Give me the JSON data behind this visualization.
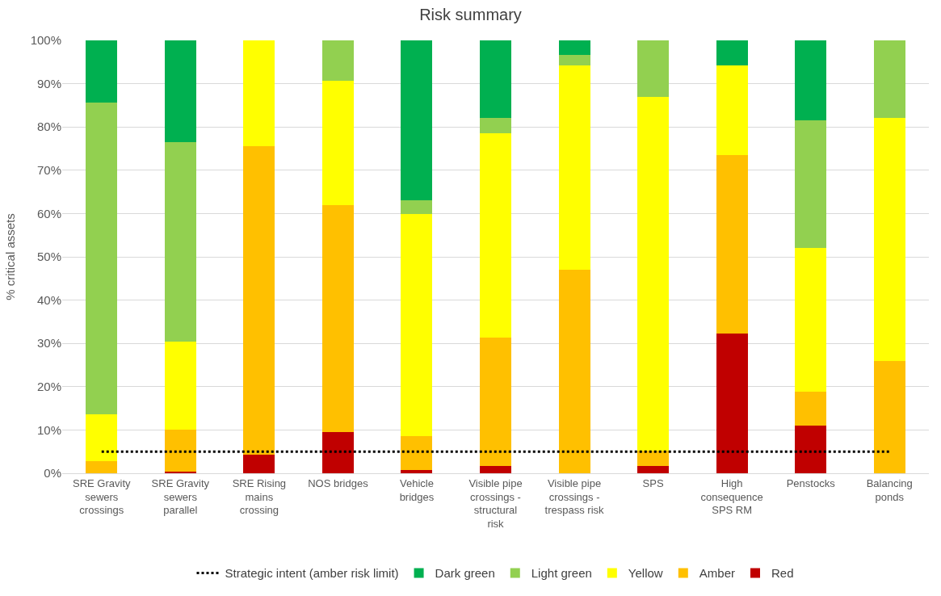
{
  "chart_data": {
    "type": "bar",
    "stacked": true,
    "title": "Risk summary",
    "ylabel": "% critical assets",
    "categories": [
      "SRE Gravity sewers crossings",
      "SRE Gravity sewers parallel",
      "SRE Rising mains crossing",
      "NOS bridges",
      "Vehicle bridges",
      "Visible pipe crossings - structural risk",
      "Visible pipe crossings - trespass risk",
      "SPS",
      "High consequence SPS RM",
      "Penstocks",
      "Balancing ponds"
    ],
    "series": [
      {
        "name": "Red",
        "color": "#c00000",
        "values": [
          0,
          0.3,
          4.3,
          9.6,
          0.7,
          1.6,
          0,
          1.6,
          32.3,
          11,
          0
        ]
      },
      {
        "name": "Amber",
        "color": "#ffc000",
        "values": [
          2.8,
          9.8,
          71.2,
          52.3,
          7.8,
          29.8,
          47.1,
          3.6,
          41.3,
          7.8,
          26
        ]
      },
      {
        "name": "Yellow",
        "color": "#ffff00",
        "values": [
          10.9,
          20.4,
          24.5,
          28.7,
          51.4,
          47.1,
          47.1,
          81.8,
          20.6,
          33.2,
          56
        ]
      },
      {
        "name": "Light green",
        "color": "#92d050",
        "values": [
          72,
          46,
          0,
          9.4,
          3.1,
          3.5,
          2.4,
          13,
          0,
          29.6,
          18
        ]
      },
      {
        "name": "Dark green",
        "color": "#00b050",
        "values": [
          14.3,
          23.5,
          0,
          0,
          37,
          18,
          3.4,
          0,
          5.8,
          18.4,
          0
        ]
      }
    ],
    "ref_lines": [
      {
        "axis": "y",
        "value": 5,
        "label": "Strategic intent (amber risk limit)",
        "color": "#000000",
        "line_style": "dotted"
      }
    ],
    "ylim": [
      0,
      100
    ],
    "yticks": [
      {
        "value": 0,
        "label": "0%"
      },
      {
        "value": 10,
        "label": "10%"
      },
      {
        "value": 20,
        "label": "20%"
      },
      {
        "value": 30,
        "label": "30%"
      },
      {
        "value": 40,
        "label": "40%"
      },
      {
        "value": 50,
        "label": "50%"
      },
      {
        "value": 60,
        "label": "60%"
      },
      {
        "value": 70,
        "label": "70%"
      },
      {
        "value": 80,
        "label": "80%"
      },
      {
        "value": 90,
        "label": "90%"
      },
      {
        "value": 100,
        "label": "100%"
      }
    ],
    "grid": "y",
    "legend": "bottom"
  }
}
